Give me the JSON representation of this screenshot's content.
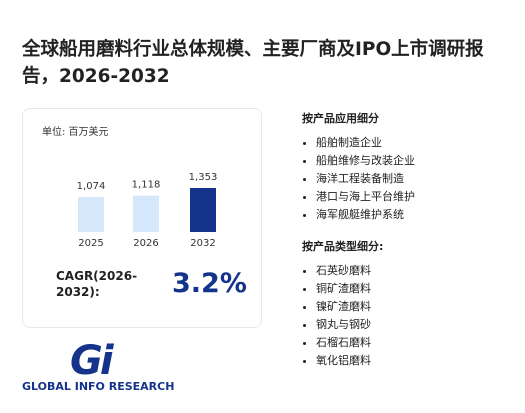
{
  "title": "全球船用磨料行业总体规模、主要厂商及IPO上市调研报告，2026-2032",
  "chart_data": {
    "type": "bar",
    "unit": "单位: 百万美元",
    "categories": [
      "2025",
      "2026",
      "2032"
    ],
    "values": [
      1074,
      1118,
      1353
    ],
    "value_labels": [
      "1,074",
      "1,118",
      "1,353"
    ],
    "colors": [
      "#d5e7fa",
      "#d5e7fa",
      "#15338a"
    ]
  },
  "cagr": {
    "label_lines": [
      "CAGR(2026-",
      "2032):"
    ],
    "value": "3.2%"
  },
  "sections": [
    {
      "heading": "按产品应用细分",
      "items": [
        "船舶制造企业",
        "船舶维修与改装企业",
        "海洋工程装备制造",
        "港口与海上平台维护",
        "海军舰艇维护系统"
      ]
    },
    {
      "heading": "按产品类型细分:",
      "items": [
        "石英砂磨料",
        "铜矿渣磨料",
        "镍矿渣磨料",
        "钢丸与钢砂",
        "石榴石磨料",
        "氧化铝磨料"
      ]
    }
  ],
  "logo": {
    "mark": "Gi",
    "name": "GLOBAL INFO RESEARCH"
  }
}
